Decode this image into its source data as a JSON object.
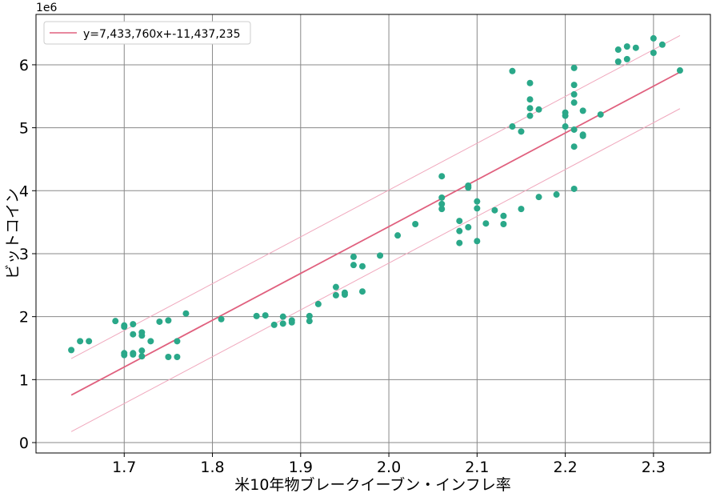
{
  "chart_data": {
    "type": "scatter",
    "title": "",
    "xlabel": "米10年物ブレークイーブン・インフレ率",
    "ylabel": "ビットコイン",
    "y_offset_label": "1e6",
    "xlim": [
      1.6,
      2.3645
    ],
    "ylim": [
      -0.165,
      6.8
    ],
    "y_scale": 1000000,
    "grid": true,
    "legend_position": "top-left",
    "xticks": [
      1.7,
      1.8,
      1.9,
      2.0,
      2.1,
      2.2,
      2.3
    ],
    "xtick_labels": [
      "1.7",
      "1.8",
      "1.9",
      "2.0",
      "2.1",
      "2.2",
      "2.3"
    ],
    "yticks": [
      0,
      1,
      2,
      3,
      4,
      5,
      6
    ],
    "ytick_labels": [
      "0",
      "1",
      "2",
      "3",
      "4",
      "5",
      "6"
    ],
    "colors": {
      "points": "#2aa889",
      "fit": "#e0607e",
      "band": "#f0a8bd",
      "grid": "#888888"
    },
    "fit": {
      "label": "y=7,433,760x+-11,437,235",
      "slope": 7433760,
      "intercept": -11437235,
      "x_range": [
        1.64,
        2.33
      ],
      "band_offset": 580000
    },
    "points": [
      [
        1.64,
        1.47
      ],
      [
        1.65,
        1.61
      ],
      [
        1.66,
        1.61
      ],
      [
        1.69,
        1.93
      ],
      [
        1.7,
        1.86
      ],
      [
        1.7,
        1.84
      ],
      [
        1.7,
        1.42
      ],
      [
        1.7,
        1.39
      ],
      [
        1.71,
        1.88
      ],
      [
        1.71,
        1.72
      ],
      [
        1.71,
        1.42
      ],
      [
        1.71,
        1.4
      ],
      [
        1.72,
        1.75
      ],
      [
        1.72,
        1.7
      ],
      [
        1.72,
        1.46
      ],
      [
        1.72,
        1.37
      ],
      [
        1.73,
        1.61
      ],
      [
        1.74,
        1.92
      ],
      [
        1.75,
        1.94
      ],
      [
        1.75,
        1.36
      ],
      [
        1.76,
        1.61
      ],
      [
        1.76,
        1.36
      ],
      [
        1.77,
        2.05
      ],
      [
        1.81,
        1.96
      ],
      [
        1.85,
        2.01
      ],
      [
        1.86,
        2.02
      ],
      [
        1.87,
        1.87
      ],
      [
        1.88,
        2.0
      ],
      [
        1.88,
        1.89
      ],
      [
        1.89,
        1.94
      ],
      [
        1.89,
        1.91
      ],
      [
        1.91,
        2.01
      ],
      [
        1.91,
        1.93
      ],
      [
        1.92,
        2.2
      ],
      [
        1.94,
        2.47
      ],
      [
        1.94,
        2.34
      ],
      [
        1.95,
        2.38
      ],
      [
        1.95,
        2.35
      ],
      [
        1.96,
        2.95
      ],
      [
        1.96,
        2.82
      ],
      [
        1.97,
        2.8
      ],
      [
        1.97,
        2.4
      ],
      [
        1.99,
        2.97
      ],
      [
        2.01,
        3.29
      ],
      [
        2.03,
        3.47
      ],
      [
        2.06,
        4.23
      ],
      [
        2.06,
        3.89
      ],
      [
        2.06,
        3.79
      ],
      [
        2.06,
        3.71
      ],
      [
        2.09,
        4.08
      ],
      [
        2.09,
        4.05
      ],
      [
        2.1,
        3.83
      ],
      [
        2.1,
        3.72
      ],
      [
        2.08,
        3.52
      ],
      [
        2.08,
        3.36
      ],
      [
        2.08,
        3.17
      ],
      [
        2.09,
        3.42
      ],
      [
        2.1,
        3.2
      ],
      [
        2.11,
        3.48
      ],
      [
        2.12,
        3.69
      ],
      [
        2.13,
        3.6
      ],
      [
        2.13,
        3.47
      ],
      [
        2.15,
        3.71
      ],
      [
        2.17,
        3.9
      ],
      [
        2.19,
        3.94
      ],
      [
        2.21,
        4.03
      ],
      [
        2.14,
        5.9
      ],
      [
        2.16,
        5.71
      ],
      [
        2.16,
        5.45
      ],
      [
        2.16,
        5.31
      ],
      [
        2.16,
        5.19
      ],
      [
        2.17,
        5.29
      ],
      [
        2.14,
        5.02
      ],
      [
        2.15,
        4.94
      ],
      [
        2.2,
        5.24
      ],
      [
        2.2,
        5.19
      ],
      [
        2.2,
        5.02
      ],
      [
        2.21,
        5.95
      ],
      [
        2.21,
        5.68
      ],
      [
        2.21,
        5.53
      ],
      [
        2.21,
        5.4
      ],
      [
        2.21,
        4.97
      ],
      [
        2.21,
        4.7
      ],
      [
        2.22,
        5.27
      ],
      [
        2.22,
        4.89
      ],
      [
        2.22,
        4.87
      ],
      [
        2.24,
        5.21
      ],
      [
        2.26,
        6.24
      ],
      [
        2.26,
        6.05
      ],
      [
        2.27,
        6.29
      ],
      [
        2.27,
        6.09
      ],
      [
        2.28,
        6.27
      ],
      [
        2.3,
        6.42
      ],
      [
        2.3,
        6.19
      ],
      [
        2.31,
        6.32
      ],
      [
        2.33,
        5.91
      ]
    ]
  }
}
